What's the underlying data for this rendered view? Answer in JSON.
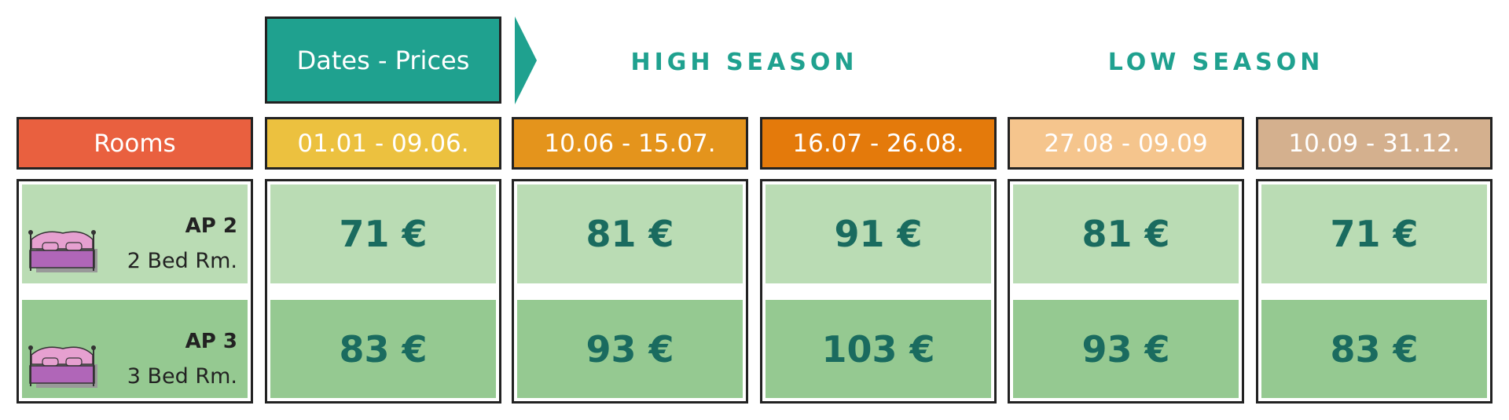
{
  "header": {
    "label": "Dates - Prices",
    "seasons": [
      "HIGH SEASON",
      "LOW SEASON"
    ]
  },
  "table": {
    "corner": "Rooms",
    "columns": [
      "01.01 - 09.06.",
      "10.06 - 15.07.",
      "16.07 - 26.08.",
      "27.08 - 09.09",
      "10.09 - 31.12."
    ],
    "rows": [
      {
        "code": "AP 2",
        "type": "2 Bed Rm.",
        "prices": [
          "71 €",
          "81 €",
          "91 €",
          "81 €",
          "71 €"
        ]
      },
      {
        "code": "AP 3",
        "type": "3 Bed Rm.",
        "prices": [
          "83 €",
          "93 €",
          "103 €",
          "93 €",
          "83 €"
        ]
      }
    ]
  }
}
